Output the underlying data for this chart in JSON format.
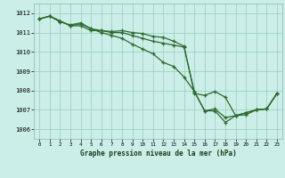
{
  "title": "Graphe pression niveau de la mer (hPa)",
  "bg_color": "#cceee8",
  "grid_color": "#99ccbb",
  "line_color": "#2d6a2d",
  "xlim": [
    -0.5,
    23.5
  ],
  "ylim": [
    1005.5,
    1012.5
  ],
  "yticks": [
    1006,
    1007,
    1008,
    1009,
    1010,
    1011,
    1012
  ],
  "xticks": [
    0,
    1,
    2,
    3,
    4,
    5,
    6,
    7,
    8,
    9,
    10,
    11,
    12,
    13,
    14,
    15,
    16,
    17,
    18,
    19,
    20,
    21,
    22,
    23
  ],
  "series": [
    [
      1011.7,
      1011.85,
      1011.6,
      1011.35,
      1011.45,
      1011.2,
      1011.0,
      1010.85,
      1010.7,
      1010.4,
      1010.15,
      1009.9,
      1009.45,
      1009.25,
      1008.7,
      1007.95,
      1006.95,
      1006.95,
      1006.35,
      1006.7,
      1006.85,
      1007.0,
      1007.05,
      1007.85
    ],
    [
      1011.7,
      1011.85,
      1011.6,
      1011.35,
      1011.35,
      1011.1,
      1011.1,
      1011.0,
      1011.0,
      1010.85,
      1010.7,
      1010.55,
      1010.45,
      1010.35,
      1010.25,
      1007.95,
      1006.95,
      1007.05,
      1006.6,
      1006.7,
      1006.85,
      1007.0,
      1007.05,
      1007.85
    ],
    [
      1011.7,
      1011.85,
      1011.55,
      1011.4,
      1011.5,
      1011.2,
      1011.1,
      1011.05,
      1011.1,
      1011.0,
      1010.95,
      1010.8,
      1010.75,
      1010.55,
      1010.3,
      1007.85,
      1007.75,
      1007.95,
      1007.65,
      1006.7,
      1006.75,
      1007.0,
      1007.05,
      1007.85
    ]
  ]
}
